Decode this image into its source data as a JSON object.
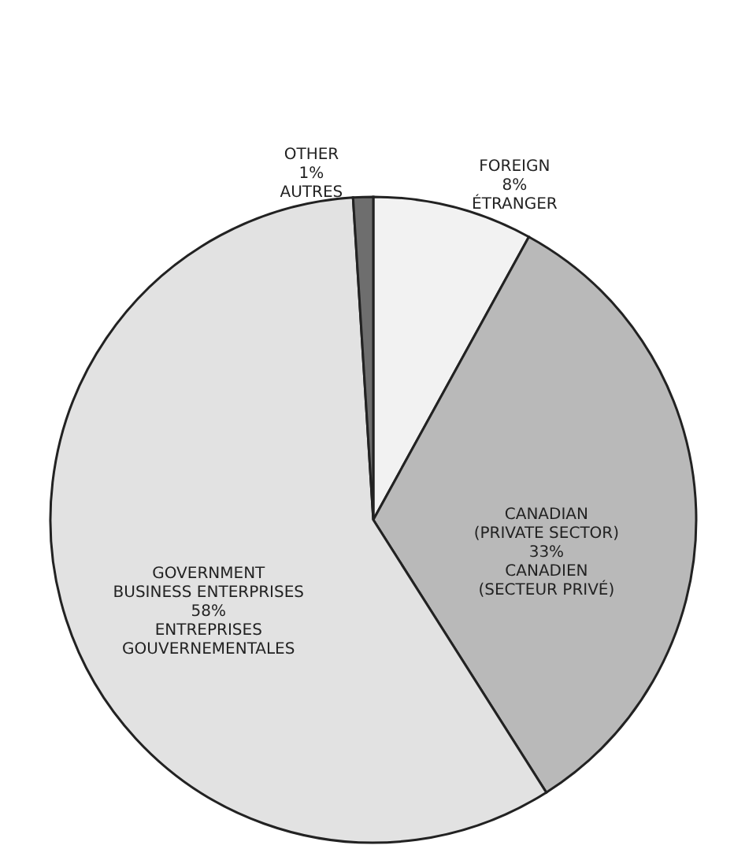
{
  "chart_data": {
    "type": "pie",
    "categories": [
      "FOREIGN",
      "CANADIAN\n(PRIVATE SECTOR)",
      "GOVERNMENT\nBUSINESS ENTERPRISES",
      "OTHER"
    ],
    "values": [
      8,
      33,
      58,
      1
    ],
    "colors": [
      "#f2f2f2",
      "#b9b9b9",
      "#e2e2e2",
      "#6e6e6e"
    ],
    "annotations": [
      "ÉTRANGER",
      "CANADIEN\n(SECTEUR PRIVÉ)",
      "ENTREPRISES\nGOUVERNEMENTALES",
      "AUTRES"
    ],
    "value_labels": [
      "8%",
      "33%",
      "58%",
      "1%"
    ]
  }
}
